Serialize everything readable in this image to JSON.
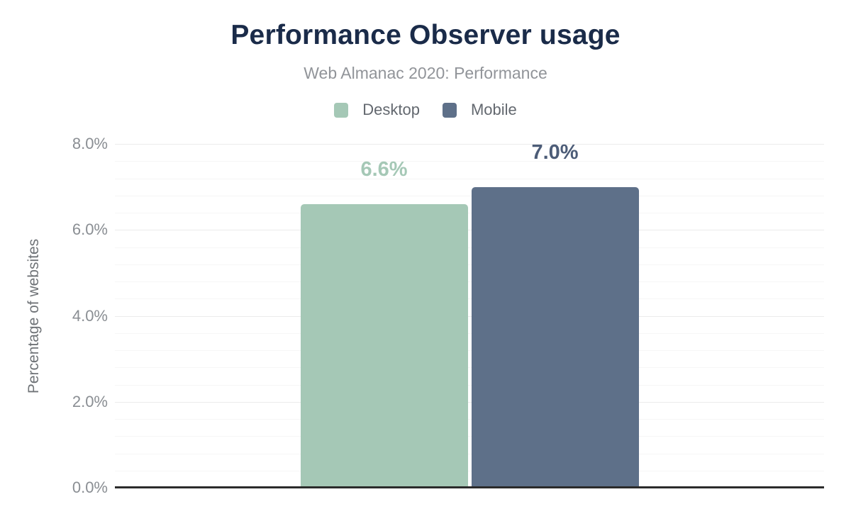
{
  "chart_data": {
    "type": "bar",
    "title": "Performance Observer usage",
    "subtitle": "Web Almanac 2020: Performance",
    "xlabel": "",
    "ylabel": "Percentage of websites",
    "categories": [
      ""
    ],
    "series": [
      {
        "name": "Desktop",
        "values": [
          6.6
        ],
        "data_labels": [
          "6.6%"
        ],
        "color": "#a5c8b6",
        "label_color": "#a5c8b6"
      },
      {
        "name": "Mobile",
        "values": [
          7.0
        ],
        "data_labels": [
          "7.0%"
        ],
        "color": "#5e7089",
        "label_color": "#4c5c77"
      }
    ],
    "ylim": [
      0,
      8
    ],
    "yticks": [
      {
        "value": 0,
        "label": "0.0%"
      },
      {
        "value": 2,
        "label": "2.0%"
      },
      {
        "value": 4,
        "label": "4.0%"
      },
      {
        "value": 6,
        "label": "6.0%"
      },
      {
        "value": 8,
        "label": "8.0%"
      }
    ],
    "grid": {
      "enabled": true,
      "major_step": 2,
      "minor_step": 0.4
    },
    "legend_position": "top"
  },
  "colors": {
    "background": "#ffffff",
    "title": "#1a2b49",
    "subtitle": "#919499",
    "legend_text": "#63686f",
    "axis_text": "#8a8e93",
    "axis_title": "#6f7377",
    "gridline_minor": "#f6f6f6",
    "gridline_major": "#ebebeb",
    "axis_line": "#2b2b2b"
  }
}
